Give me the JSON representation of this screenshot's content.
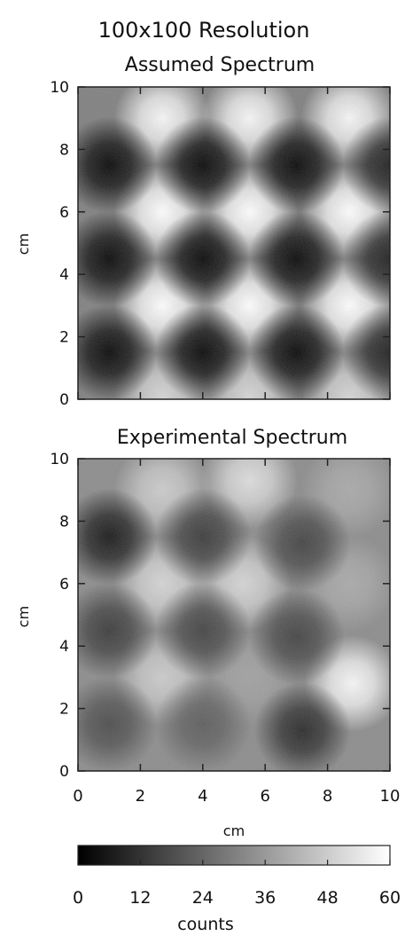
{
  "figure": {
    "title": "100x100 Resolution",
    "colorbar": {
      "label": "counts",
      "ticks": [
        "0",
        "12",
        "24",
        "36",
        "48",
        "60"
      ],
      "range": [
        0,
        60
      ],
      "colormap": [
        "#000000",
        "#ffffff"
      ]
    }
  },
  "chart_data": [
    {
      "type": "heatmap",
      "title": "Assumed Spectrum",
      "xlabel": "",
      "ylabel": "cm",
      "xlim": [
        0,
        10
      ],
      "ylim": [
        0,
        10
      ],
      "yticks": [
        "0",
        "2",
        "4",
        "6",
        "8",
        "10"
      ],
      "xticks": [],
      "resolution": [
        100,
        100
      ],
      "value_range": [
        0,
        60
      ],
      "blobs": [
        {
          "x": 2.7,
          "y": 9.0,
          "value": 58
        },
        {
          "x": 5.5,
          "y": 9.0,
          "value": 58
        },
        {
          "x": 8.7,
          "y": 9.0,
          "value": 58
        },
        {
          "x": 2.7,
          "y": 6.0,
          "value": 60
        },
        {
          "x": 5.5,
          "y": 6.0,
          "value": 60
        },
        {
          "x": 8.7,
          "y": 6.0,
          "value": 60
        },
        {
          "x": 2.7,
          "y": 3.0,
          "value": 60
        },
        {
          "x": 5.5,
          "y": 3.0,
          "value": 60
        },
        {
          "x": 8.7,
          "y": 3.0,
          "value": 60
        },
        {
          "x": 2.7,
          "y": 0.1,
          "value": 50
        },
        {
          "x": 5.5,
          "y": 0.1,
          "value": 50
        },
        {
          "x": 8.7,
          "y": 0.1,
          "value": 50
        },
        {
          "x": 1.0,
          "y": 7.5,
          "value": 2
        },
        {
          "x": 4.0,
          "y": 7.5,
          "value": 2
        },
        {
          "x": 7.0,
          "y": 7.5,
          "value": 2
        },
        {
          "x": 10.0,
          "y": 7.5,
          "value": 8
        },
        {
          "x": 1.0,
          "y": 4.5,
          "value": 2
        },
        {
          "x": 4.0,
          "y": 4.5,
          "value": 2
        },
        {
          "x": 7.0,
          "y": 4.5,
          "value": 2
        },
        {
          "x": 10.0,
          "y": 4.5,
          "value": 8
        },
        {
          "x": 1.0,
          "y": 1.5,
          "value": 2
        },
        {
          "x": 4.0,
          "y": 1.5,
          "value": 2
        },
        {
          "x": 7.0,
          "y": 1.5,
          "value": 2
        },
        {
          "x": 10.0,
          "y": 1.5,
          "value": 8
        }
      ],
      "background_value": 30
    },
    {
      "type": "heatmap",
      "title": "Experimental Spectrum",
      "xlabel": "cm",
      "ylabel": "cm",
      "xlim": [
        0,
        10
      ],
      "ylim": [
        0,
        10
      ],
      "xticks": [
        "0",
        "2",
        "4",
        "6",
        "8",
        "10"
      ],
      "yticks": [
        "0",
        "2",
        "4",
        "6",
        "8",
        "10"
      ],
      "resolution": [
        100,
        100
      ],
      "value_range": [
        0,
        60
      ],
      "blobs": [
        {
          "x": 2.7,
          "y": 9.0,
          "value": 48
        },
        {
          "x": 5.5,
          "y": 9.3,
          "value": 52
        },
        {
          "x": 8.7,
          "y": 9.0,
          "value": 40
        },
        {
          "x": 2.7,
          "y": 6.0,
          "value": 50
        },
        {
          "x": 5.3,
          "y": 6.0,
          "value": 50
        },
        {
          "x": 8.7,
          "y": 6.0,
          "value": 40
        },
        {
          "x": 2.7,
          "y": 3.0,
          "value": 48
        },
        {
          "x": 5.5,
          "y": 3.0,
          "value": 38
        },
        {
          "x": 8.8,
          "y": 2.8,
          "value": 58
        },
        {
          "x": 1.0,
          "y": 7.5,
          "value": 6
        },
        {
          "x": 4.0,
          "y": 7.5,
          "value": 14
        },
        {
          "x": 7.2,
          "y": 7.3,
          "value": 16
        },
        {
          "x": 1.0,
          "y": 4.5,
          "value": 14
        },
        {
          "x": 4.0,
          "y": 4.5,
          "value": 16
        },
        {
          "x": 7.0,
          "y": 4.3,
          "value": 16
        },
        {
          "x": 1.0,
          "y": 1.5,
          "value": 18
        },
        {
          "x": 4.0,
          "y": 1.5,
          "value": 22
        },
        {
          "x": 7.2,
          "y": 1.3,
          "value": 10
        }
      ],
      "background_value": 33
    }
  ]
}
